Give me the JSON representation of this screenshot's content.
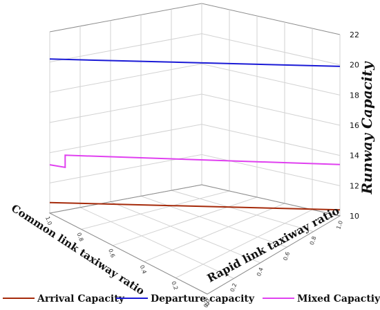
{
  "chart_data": {
    "type": "line",
    "projection": "3d",
    "zlabel": "Runway Capacity",
    "xlabel": "Common link taxiway ratio",
    "ylabel": "Rapid link taxiway ratio",
    "zlim": [
      10,
      22
    ],
    "z_ticks": [
      "10",
      "12",
      "14",
      "16",
      "18",
      "20",
      "22"
    ],
    "x_ticks": [
      "0.0",
      "0.2",
      "0.4",
      "0.6",
      "0.8",
      "1.0"
    ],
    "y_ticks": [
      "0.0",
      "0.2",
      "0.4",
      "0.6",
      "0.8",
      "1.0"
    ],
    "grid": true,
    "legend_position": "bottom",
    "series": [
      {
        "name": "Arrival Capacity",
        "color": "#a52a0a",
        "points": [
          {
            "common": 1.0,
            "rapid": 0.0,
            "capacity": 10.7
          },
          {
            "common": 0.0,
            "rapid": 1.0,
            "capacity": 10.4
          }
        ]
      },
      {
        "name": "Departure capacity",
        "color": "#1a1ad6",
        "points": [
          {
            "common": 1.0,
            "rapid": 0.0,
            "capacity": 20.2
          },
          {
            "common": 0.0,
            "rapid": 1.0,
            "capacity": 19.9
          }
        ]
      },
      {
        "name": "Mixed Capactiy",
        "color": "#e040f0",
        "points": [
          {
            "common": 1.0,
            "rapid": 0.0,
            "capacity": 13.2
          },
          {
            "common": 0.95,
            "rapid": 0.05,
            "capacity": 13.2
          },
          {
            "common": 0.95,
            "rapid": 0.05,
            "capacity": 14.0
          },
          {
            "common": 0.0,
            "rapid": 1.0,
            "capacity": 13.4
          }
        ]
      }
    ]
  }
}
